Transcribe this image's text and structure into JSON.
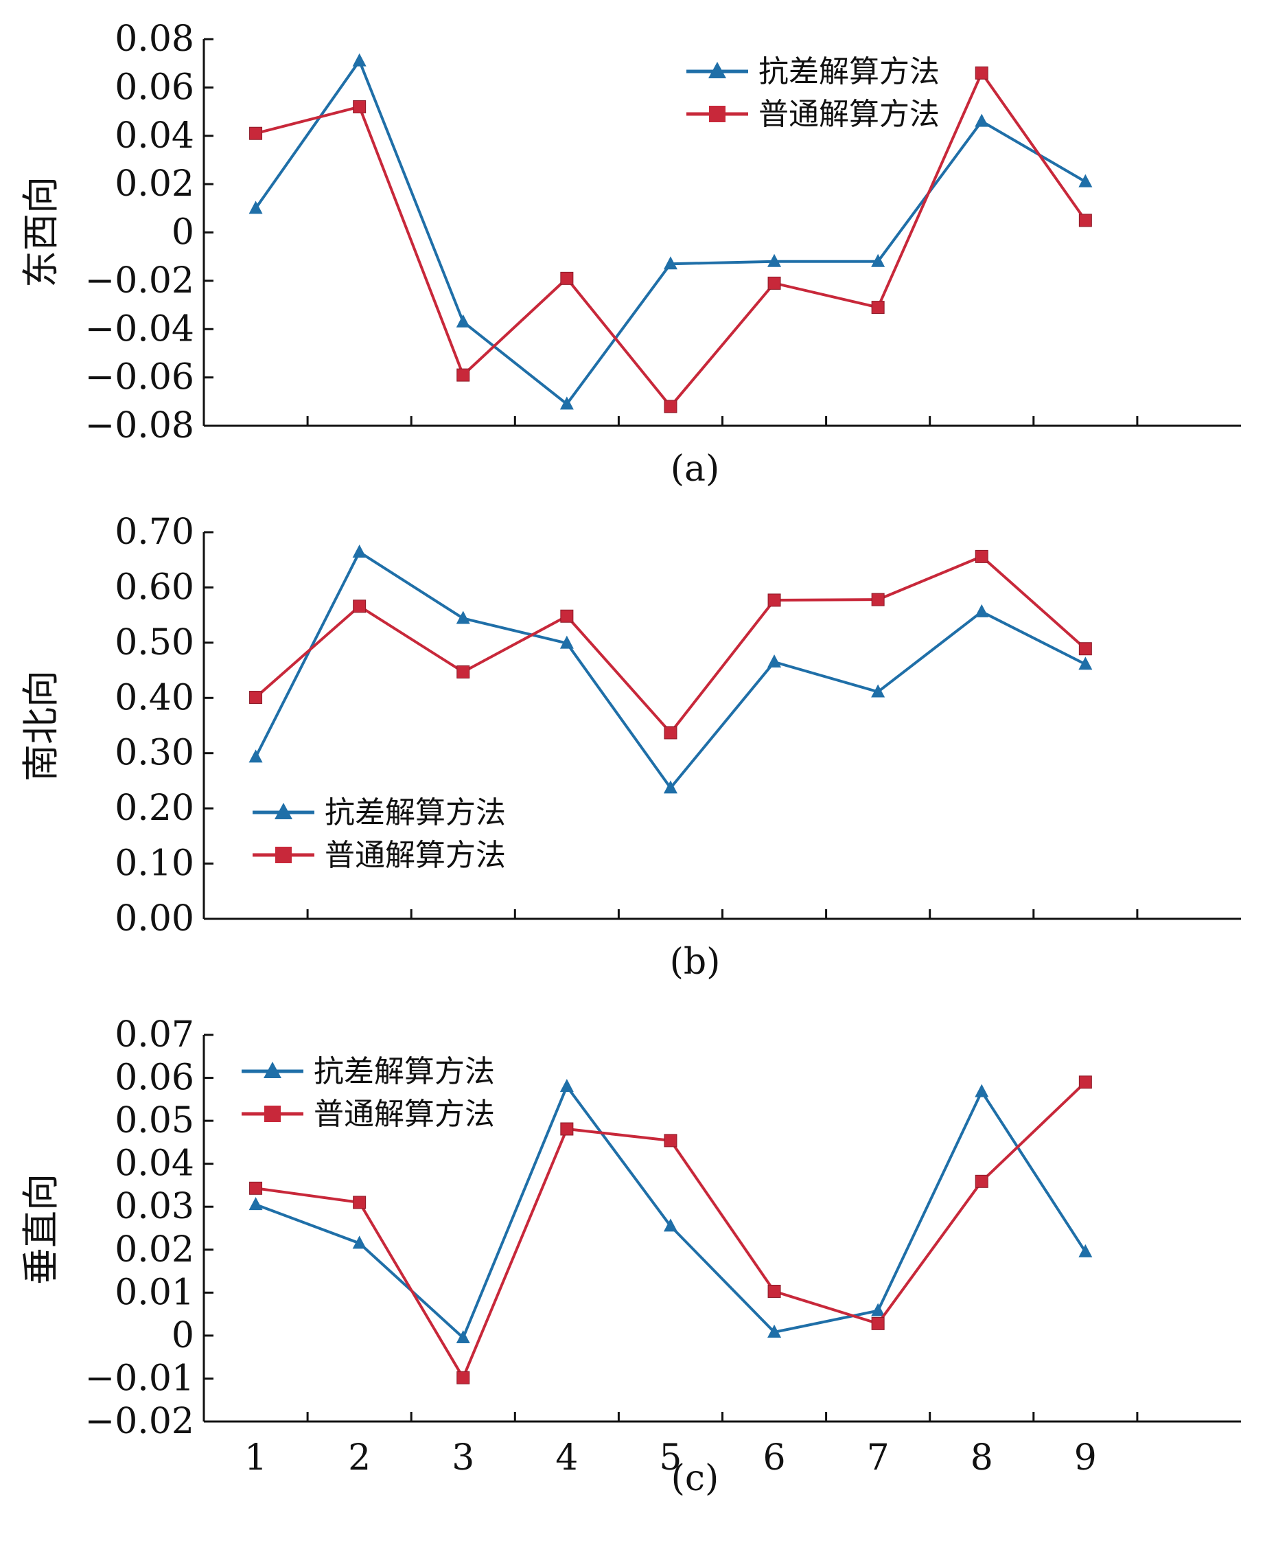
{
  "chart_data": [
    {
      "type": "line",
      "id": "a",
      "caption": "(a)",
      "ylabel": "东西向",
      "ylim": [
        -0.08,
        0.08
      ],
      "yticks": [
        "0.08",
        "0.06",
        "0.04",
        "0.02",
        "0",
        "−0.02",
        "−0.04",
        "−0.06",
        "−0.08"
      ],
      "ytick_values": [
        0.08,
        0.06,
        0.04,
        0.02,
        0,
        -0.02,
        -0.04,
        -0.06,
        -0.08
      ],
      "x": [
        1,
        2,
        3,
        4,
        5,
        6,
        7,
        8,
        9
      ],
      "show_xtick_labels": false,
      "legend": "top-right",
      "series": [
        {
          "name": "抗差解算方法",
          "color": "#1f6fa8",
          "marker": "triangle",
          "values": [
            0.01,
            0.071,
            -0.037,
            -0.071,
            -0.013,
            -0.012,
            -0.012,
            0.046,
            0.021
          ]
        },
        {
          "name": "普通解算方法",
          "color": "#c8283a",
          "marker": "square",
          "values": [
            0.041,
            0.052,
            -0.059,
            -0.019,
            -0.072,
            -0.021,
            -0.031,
            0.066,
            0.005
          ]
        }
      ]
    },
    {
      "type": "line",
      "id": "b",
      "caption": "(b)",
      "ylabel": "南北向",
      "ylim": [
        0.0,
        0.7
      ],
      "yticks": [
        "0.70",
        "0.60",
        "0.50",
        "0.40",
        "0.30",
        "0.20",
        "0.10",
        "0.00"
      ],
      "ytick_values": [
        0.7,
        0.6,
        0.5,
        0.4,
        0.3,
        0.2,
        0.1,
        0.0
      ],
      "x": [
        1,
        2,
        3,
        4,
        5,
        6,
        7,
        8,
        9
      ],
      "show_xtick_labels": false,
      "legend": "bottom-left",
      "series": [
        {
          "name": "抗差解算方法",
          "color": "#1f6fa8",
          "marker": "triangle",
          "values": [
            0.293,
            0.664,
            0.544,
            0.499,
            0.237,
            0.465,
            0.411,
            0.556,
            0.461
          ]
        },
        {
          "name": "普通解算方法",
          "color": "#c8283a",
          "marker": "square",
          "values": [
            0.401,
            0.566,
            0.447,
            0.548,
            0.337,
            0.577,
            0.578,
            0.656,
            0.489
          ]
        }
      ]
    },
    {
      "type": "line",
      "id": "c",
      "caption": "(c)",
      "ylabel": "垂直向",
      "ylim": [
        -0.02,
        0.07
      ],
      "yticks": [
        "0.07",
        "0.06",
        "0.05",
        "0.04",
        "0.03",
        "0.02",
        "0.01",
        "0",
        "−0.01",
        "−0.02"
      ],
      "ytick_values": [
        0.07,
        0.06,
        0.05,
        0.04,
        0.03,
        0.02,
        0.01,
        0,
        -0.01,
        -0.02
      ],
      "x": [
        1,
        2,
        3,
        4,
        5,
        6,
        7,
        8,
        9
      ],
      "xtick_labels": [
        "1",
        "2",
        "3",
        "4",
        "5",
        "6",
        "7",
        "8",
        "9"
      ],
      "show_xtick_labels": true,
      "legend": "top-left",
      "series": [
        {
          "name": "抗差解算方法",
          "color": "#1f6fa8",
          "marker": "triangle",
          "values": [
            0.0305,
            0.0215,
            -0.0005,
            0.058,
            0.0255,
            0.0008,
            0.0058,
            0.0568,
            0.0195
          ]
        },
        {
          "name": "普通解算方法",
          "color": "#c8283a",
          "marker": "square",
          "values": [
            0.0343,
            0.031,
            -0.0098,
            0.0481,
            0.0454,
            0.0103,
            0.0028,
            0.0359,
            0.059
          ]
        }
      ]
    }
  ]
}
